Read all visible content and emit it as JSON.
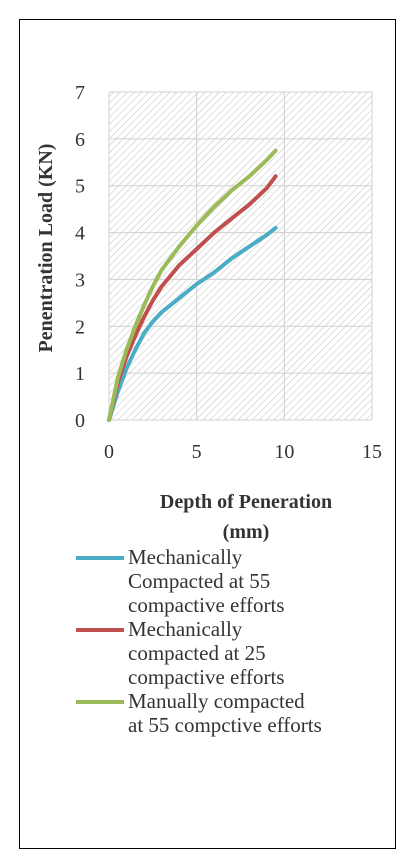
{
  "chart_data": {
    "type": "line",
    "title": "",
    "xlabel_lines": [
      "Depth of Peneration",
      "(mm)"
    ],
    "ylabel": "Penentration Load (KN)",
    "xlim": [
      0,
      15
    ],
    "ylim": [
      0,
      7
    ],
    "x_ticks": [
      "0",
      "5",
      "10",
      "15"
    ],
    "y_ticks": [
      "0",
      "1",
      "2",
      "3",
      "4",
      "5",
      "6",
      "7"
    ],
    "grid": true,
    "plot_background": "diagonal-hatch",
    "legend_position": "bottom",
    "series": [
      {
        "name": "Mechanically Compacted at 55 compactive efforts",
        "legend_lines": [
          "Mechanically",
          "Compacted at 55",
          "compactive efforts"
        ],
        "color": "#4BACC6",
        "x": [
          0,
          0.5,
          1,
          1.5,
          2,
          2.5,
          3,
          4,
          5,
          6,
          7,
          8,
          9,
          9.5
        ],
        "y": [
          0,
          0.6,
          1.1,
          1.5,
          1.85,
          2.1,
          2.3,
          2.6,
          2.9,
          3.15,
          3.45,
          3.7,
          3.95,
          4.1
        ]
      },
      {
        "name": "Mechanically compacted at 25 compactive efforts",
        "legend_lines": [
          "Mechanically",
          "compacted at 25",
          "compactive efforts"
        ],
        "color": "#C0504D",
        "x": [
          0,
          0.5,
          1,
          1.5,
          2,
          2.5,
          3,
          4,
          5,
          6,
          7,
          8,
          9,
          9.5
        ],
        "y": [
          0,
          0.8,
          1.35,
          1.8,
          2.2,
          2.55,
          2.85,
          3.3,
          3.65,
          4.0,
          4.3,
          4.6,
          4.95,
          5.2
        ]
      },
      {
        "name": "Manually compacted at 55 compctive efforts",
        "legend_lines": [
          "Manually compacted",
          "at 55 compctive efforts"
        ],
        "color": "#9BBB59",
        "x": [
          0,
          0.5,
          1,
          1.5,
          2,
          2.5,
          3,
          4,
          5,
          6,
          7,
          8,
          9,
          9.5
        ],
        "y": [
          0,
          0.9,
          1.5,
          2.0,
          2.45,
          2.85,
          3.2,
          3.7,
          4.15,
          4.55,
          4.9,
          5.2,
          5.55,
          5.75
        ]
      }
    ]
  }
}
